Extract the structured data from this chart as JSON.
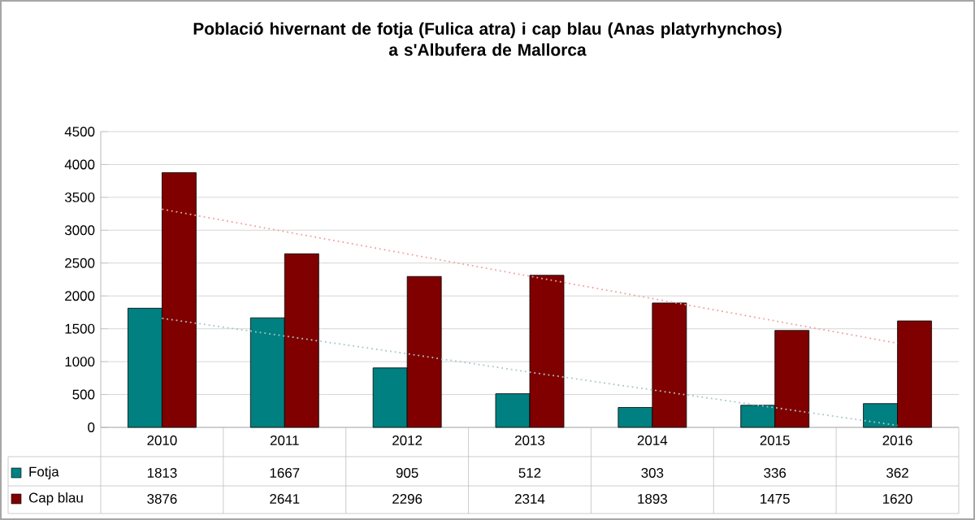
{
  "chart_data": {
    "type": "bar",
    "title": "Població hivernant de fotja (Fulica atra) i cap blau (Anas platyrhynchos)\na s'Albufera de Mallorca",
    "categories": [
      "2010",
      "2011",
      "2012",
      "2013",
      "2014",
      "2015",
      "2016"
    ],
    "series": [
      {
        "name": "Fotja",
        "color": "#008080",
        "values": [
          1813,
          1667,
          905,
          512,
          303,
          336,
          362
        ],
        "value_labels": [
          "1813",
          "1667",
          "905",
          "512",
          "303",
          "336",
          "362"
        ]
      },
      {
        "name": "Cap blau",
        "color": "#800000",
        "values": [
          3876,
          2641,
          2296,
          2314,
          1893,
          1475,
          1620
        ],
        "value_labels": [
          "3876",
          "2641",
          "2296",
          "2314",
          "1893",
          "1475",
          "1620"
        ]
      },
      {
        "type": "line",
        "color": "#a8c4cc",
        "line_style": "dotted",
        "values": [
          1660,
          1390,
          1120,
          840,
          570,
          300,
          30
        ]
      },
      {
        "type": "line",
        "color": "#f0a0a0",
        "line_style": "dotted",
        "values": [
          3320,
          2980,
          2640,
          2300,
          1960,
          1620,
          1280
        ]
      }
    ],
    "ylim": [
      0,
      4500
    ],
    "yticks": [
      0,
      500,
      1000,
      1500,
      2000,
      2500,
      3000,
      3500,
      4000,
      4500
    ],
    "grid": "y",
    "legend": "bottom left"
  }
}
